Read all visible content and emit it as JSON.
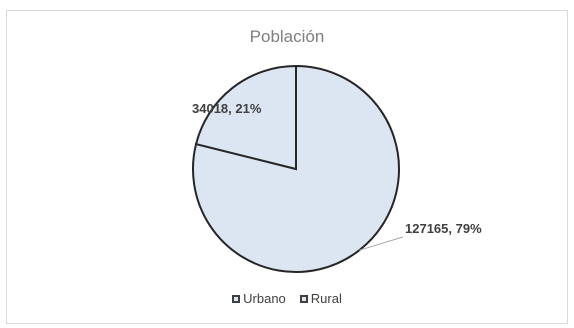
{
  "chart_data": {
    "type": "pie",
    "title": "Población",
    "categories": [
      "Urbano",
      "Rural"
    ],
    "values": [
      127165,
      34018
    ],
    "data_labels": [
      "127165, 79%",
      "34018, 21%"
    ],
    "colors": {
      "Urbano": "#dce6f2",
      "Rural": "#dce6f2",
      "stroke": "#262626"
    },
    "legend_position": "bottom"
  }
}
